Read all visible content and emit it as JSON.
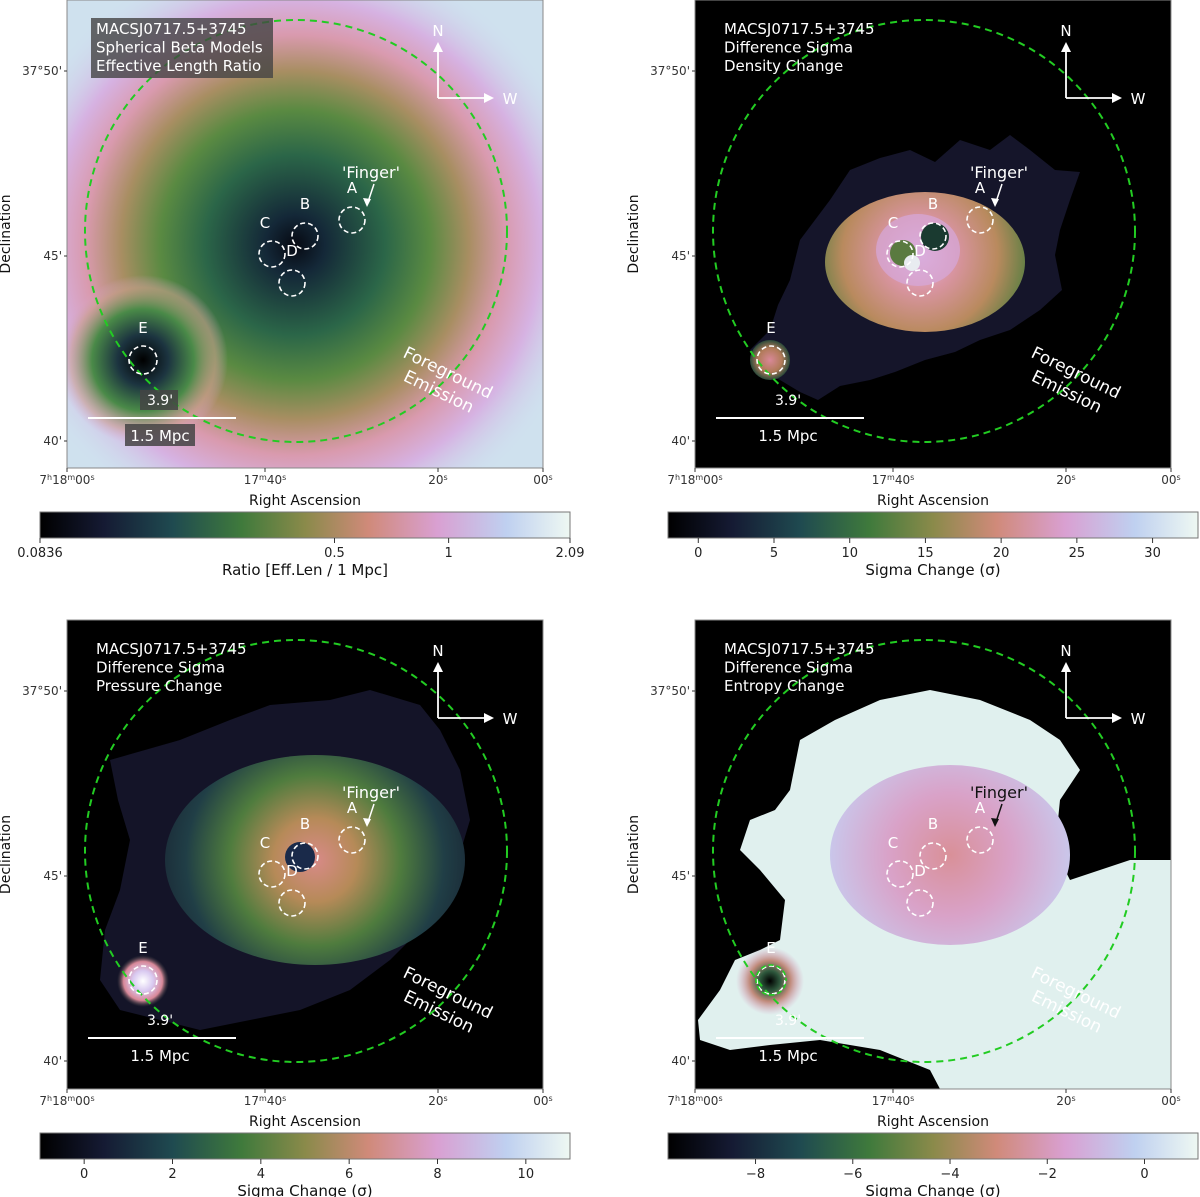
{
  "figure": {
    "cluster_name": "MACSJ0717.5+3745",
    "xlabel": "Right Ascension",
    "ylabel": "Declination",
    "ra_ticks": [
      {
        "main": "7",
        "sup1": "h",
        "mid": "18",
        "sup2": "m",
        "end": "00",
        "sup3": "s"
      },
      {
        "main": "17",
        "sup1": "m",
        "mid": "40",
        "sup2": "s",
        "end": "",
        "sup3": ""
      },
      {
        "main": "20",
        "sup1": "s",
        "mid": "",
        "sup2": "",
        "end": "",
        "sup3": ""
      },
      {
        "main": "00",
        "sup1": "s",
        "mid": "",
        "sup2": "",
        "end": "",
        "sup3": ""
      }
    ],
    "dec_ticks": [
      "37°50'",
      "45'",
      "40'"
    ],
    "compass_north": "N",
    "compass_west": "W",
    "angular_scale": "3.9'",
    "physical_scale": "1.5 Mpc",
    "foreground_line1": "Foreground",
    "foreground_line2": "Emission",
    "finger_label": "'Finger'",
    "region_labels": [
      "A",
      "B",
      "C",
      "D",
      "E"
    ]
  },
  "colors": {
    "circle_outline": "#22cc22",
    "label_box": "#444444"
  },
  "chart_data": [
    {
      "type": "heatmap",
      "id": "tl",
      "title_lines": [
        "MACSJ0717.5+3745",
        "Spherical Beta Models",
        "Effective Length Ratio"
      ],
      "colorbar_label": "Ratio [Eff.Len / 1 Mpc]",
      "colorbar_scale": "log",
      "colorbar_range": [
        0.0836,
        2.09
      ],
      "colorbar_ticks": [
        {
          "label": "0.0836",
          "value": 0.0836
        },
        {
          "label": "0.5",
          "value": 0.5
        },
        {
          "label": "1",
          "value": 1
        },
        {
          "label": "2.09",
          "value": 2.09
        }
      ],
      "finger_arrow_dark": false
    },
    {
      "type": "heatmap",
      "id": "tr",
      "title_lines": [
        "MACSJ0717.5+3745",
        "Difference Sigma",
        "Density Change"
      ],
      "colorbar_label": "Sigma Change (σ)",
      "colorbar_scale": "linear",
      "colorbar_range": [
        -2,
        33
      ],
      "colorbar_ticks": [
        {
          "label": "0",
          "value": 0
        },
        {
          "label": "5",
          "value": 5
        },
        {
          "label": "10",
          "value": 10
        },
        {
          "label": "15",
          "value": 15
        },
        {
          "label": "20",
          "value": 20
        },
        {
          "label": "25",
          "value": 25
        },
        {
          "label": "30",
          "value": 30
        }
      ],
      "finger_arrow_dark": false
    },
    {
      "type": "heatmap",
      "id": "bl",
      "title_lines": [
        "MACSJ0717.5+3745",
        "Difference Sigma",
        "Pressure Change"
      ],
      "colorbar_label": "Sigma Change (σ)",
      "colorbar_scale": "linear",
      "colorbar_range": [
        -1,
        11
      ],
      "colorbar_ticks": [
        {
          "label": "0",
          "value": 0
        },
        {
          "label": "2",
          "value": 2
        },
        {
          "label": "4",
          "value": 4
        },
        {
          "label": "6",
          "value": 6
        },
        {
          "label": "8",
          "value": 8
        },
        {
          "label": "10",
          "value": 10
        }
      ],
      "finger_arrow_dark": false
    },
    {
      "type": "heatmap",
      "id": "br",
      "title_lines": [
        "MACSJ0717.5+3745",
        "Difference Sigma",
        "Entropy Change"
      ],
      "colorbar_label": "Sigma Change (σ)",
      "colorbar_scale": "linear",
      "colorbar_range": [
        -9.8,
        1.1
      ],
      "colorbar_ticks": [
        {
          "label": "−8",
          "value": -8
        },
        {
          "label": "−6",
          "value": -6
        },
        {
          "label": "−4",
          "value": -4
        },
        {
          "label": "−2",
          "value": -2
        },
        {
          "label": "0",
          "value": 0
        }
      ],
      "finger_arrow_dark": true
    }
  ]
}
